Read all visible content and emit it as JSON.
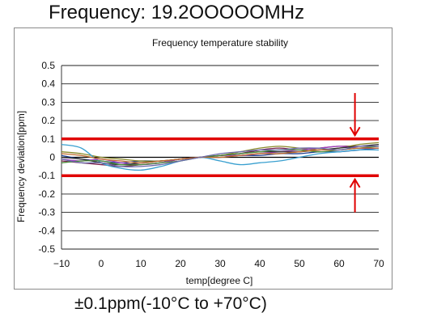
{
  "header": {
    "frequency_label": "Frequency: 19.2OOOOOMHz"
  },
  "footer": {
    "spec_text": "±0.1ppm(-10°C  to +70°C)"
  },
  "chart_data": {
    "type": "line",
    "title": "Frequency temperature stability",
    "xlabel": "temp[degree C]",
    "ylabel": "Frequency deviation[ppm]",
    "xlim": [
      -10,
      70
    ],
    "ylim": [
      -0.5,
      0.5
    ],
    "x_ticks": [
      -10,
      0,
      10,
      20,
      30,
      40,
      50,
      60,
      70
    ],
    "y_ticks": [
      0.5,
      0.4,
      0.3,
      0.2,
      0.1,
      0,
      -0.1,
      -0.2,
      -0.3,
      -0.4,
      -0.5
    ],
    "y_tick_labels": [
      "0.5",
      "0.4",
      "0.3",
      "0.2",
      "0.1",
      "0",
      "-0.1",
      "-0.2",
      "-0.3",
      "-0.4",
      "-0.5"
    ],
    "grid": true,
    "limit_lines": [
      0.1,
      -0.1
    ],
    "limit_color": "#e00000",
    "arrows": [
      {
        "x": 64,
        "from": 0.35,
        "to": 0.12
      },
      {
        "x": 64,
        "from": -0.3,
        "to": -0.12
      }
    ],
    "x": [
      -10,
      -5,
      0,
      5,
      10,
      15,
      20,
      25,
      30,
      35,
      40,
      45,
      50,
      55,
      60,
      65,
      70
    ],
    "series": [
      {
        "color": "#1f3f8f",
        "values": [
          0.01,
          -0.01,
          -0.02,
          -0.03,
          -0.02,
          -0.02,
          -0.01,
          0.0,
          0.0,
          0.01,
          0.01,
          0.02,
          0.02,
          0.03,
          0.03,
          0.04,
          0.05
        ]
      },
      {
        "color": "#7a1f4a",
        "values": [
          -0.02,
          -0.03,
          -0.04,
          -0.05,
          -0.04,
          -0.03,
          -0.01,
          0.0,
          0.01,
          0.02,
          0.04,
          0.05,
          0.04,
          0.05,
          0.06,
          0.06,
          0.06
        ]
      },
      {
        "color": "#8a8a2a",
        "values": [
          0.03,
          0.02,
          0.0,
          -0.01,
          -0.02,
          -0.02,
          -0.01,
          0.0,
          0.01,
          0.03,
          0.05,
          0.06,
          0.05,
          0.04,
          0.05,
          0.07,
          0.08
        ]
      },
      {
        "color": "#3aa0d0",
        "values": [
          0.07,
          0.05,
          -0.03,
          -0.06,
          -0.07,
          -0.05,
          -0.02,
          0.0,
          -0.02,
          -0.04,
          -0.03,
          -0.02,
          0.0,
          0.02,
          0.03,
          0.04,
          0.04
        ]
      },
      {
        "color": "#a040c0",
        "values": [
          -0.01,
          -0.02,
          -0.01,
          -0.03,
          -0.04,
          -0.03,
          -0.01,
          0.0,
          0.01,
          0.01,
          0.02,
          0.03,
          0.04,
          0.05,
          0.06,
          0.05,
          0.05
        ]
      },
      {
        "color": "#2a2a2a",
        "values": [
          0.0,
          -0.01,
          -0.03,
          -0.04,
          -0.03,
          -0.02,
          -0.01,
          0.0,
          0.01,
          0.02,
          0.03,
          0.03,
          0.03,
          0.04,
          0.05,
          0.06,
          0.07
        ]
      },
      {
        "color": "#4a8a3a",
        "values": [
          -0.03,
          -0.02,
          -0.02,
          -0.04,
          -0.04,
          -0.03,
          -0.02,
          0.0,
          0.01,
          0.02,
          0.03,
          0.04,
          0.04,
          0.03,
          0.04,
          0.05,
          0.06
        ]
      },
      {
        "color": "#c06a2a",
        "values": [
          0.02,
          0.01,
          -0.01,
          -0.02,
          -0.03,
          -0.02,
          -0.01,
          0.0,
          0.0,
          0.01,
          0.02,
          0.02,
          0.03,
          0.04,
          0.04,
          0.05,
          0.05
        ]
      },
      {
        "color": "#6a6aaa",
        "values": [
          -0.01,
          -0.03,
          -0.03,
          -0.05,
          -0.05,
          -0.04,
          -0.02,
          0.0,
          0.02,
          0.03,
          0.04,
          0.04,
          0.05,
          0.05,
          0.04,
          0.06,
          0.06
        ]
      }
    ]
  }
}
